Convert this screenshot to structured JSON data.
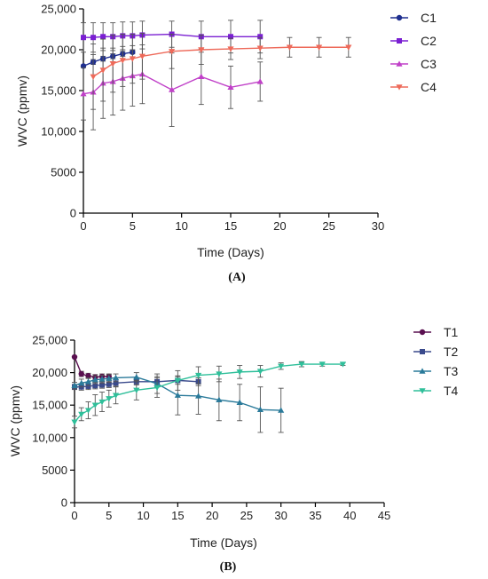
{
  "chart_data": [
    {
      "type": "line",
      "panel_label": "(A)",
      "xlabel": "Time (Days)",
      "ylabel": "WVC (ppmv)",
      "xlim": [
        0,
        30
      ],
      "ylim": [
        0,
        25000
      ],
      "x_ticks": [
        "0",
        "5",
        "10",
        "15",
        "20",
        "25",
        "30"
      ],
      "y_ticks": [
        "0",
        "5000",
        "10,000",
        "15,000",
        "20,000",
        "25,000"
      ],
      "legend_position": "top-right",
      "series": [
        {
          "name": "C1",
          "color": "#1f2f8f",
          "marker": "circle",
          "x": [
            0,
            1,
            2,
            3,
            4,
            5
          ],
          "y": [
            18000,
            18500,
            18900,
            19200,
            19500,
            19700
          ],
          "err": [
            0,
            300,
            300,
            300,
            300,
            200
          ]
        },
        {
          "name": "C2",
          "color": "#7a1fd2",
          "marker": "square",
          "x": [
            0,
            1,
            2,
            3,
            4,
            5,
            6,
            9,
            12,
            15,
            18
          ],
          "y": [
            21500,
            21500,
            21600,
            21600,
            21700,
            21700,
            21800,
            21900,
            21600,
            21600,
            21600
          ],
          "err": [
            1800,
            1800,
            1700,
            1700,
            1700,
            1700,
            1700,
            1600,
            1900,
            2000,
            2000
          ]
        },
        {
          "name": "C3",
          "color": "#c040c8",
          "marker": "triangle-up",
          "x": [
            0,
            1,
            2,
            3,
            4,
            5,
            6,
            9,
            12,
            15,
            18
          ],
          "y": [
            14600,
            14800,
            15900,
            16100,
            16500,
            16800,
            17000,
            15100,
            16700,
            15400,
            16100
          ],
          "err": [
            3200,
            4600,
            4300,
            4100,
            3900,
            3700,
            3600,
            4500,
            3400,
            2600,
            2400
          ]
        },
        {
          "name": "C4",
          "color": "#ee6a5a",
          "marker": "triangle-down",
          "x": [
            1,
            2,
            3,
            4,
            5,
            6,
            9,
            12,
            15,
            18,
            21,
            24,
            27
          ],
          "y": [
            16700,
            17500,
            18300,
            18700,
            18900,
            19200,
            19800,
            20000,
            20100,
            20200,
            20300,
            20300,
            20300
          ],
          "err": [
            4000,
            3800,
            3500,
            3200,
            3000,
            2800,
            2100,
            1800,
            1300,
            1300,
            1200,
            1200,
            1200
          ]
        }
      ]
    },
    {
      "type": "line",
      "panel_label": "(B)",
      "xlabel": "Time (Days)",
      "ylabel": "WVC (ppmv)",
      "xlim": [
        0,
        45
      ],
      "ylim": [
        0,
        25000
      ],
      "x_ticks": [
        "0",
        "5",
        "10",
        "15",
        "20",
        "25",
        "30",
        "35",
        "40",
        "45"
      ],
      "y_ticks": [
        "0",
        "5000",
        "10,000",
        "15,000",
        "20,000",
        "25,000"
      ],
      "legend_position": "top-right",
      "series": [
        {
          "name": "T1",
          "color": "#5a1050",
          "marker": "circle",
          "x": [
            0,
            1,
            2,
            3,
            4,
            5
          ],
          "y": [
            22400,
            19800,
            19500,
            19300,
            19400,
            19400
          ],
          "err": [
            0,
            400,
            400,
            400,
            400,
            400
          ]
        },
        {
          "name": "T2",
          "color": "#3a4a8c",
          "marker": "square",
          "x": [
            0,
            1,
            2,
            3,
            4,
            5,
            6,
            9,
            12,
            15,
            18
          ],
          "y": [
            17800,
            17800,
            17900,
            18000,
            18100,
            18200,
            18400,
            18600,
            18600,
            18800,
            18600
          ],
          "err": [
            400,
            500,
            500,
            500,
            500,
            500,
            500,
            500,
            800,
            600,
            600
          ]
        },
        {
          "name": "T3",
          "color": "#2a7a9a",
          "marker": "triangle-up",
          "x": [
            0,
            1,
            2,
            3,
            4,
            5,
            6,
            9,
            12,
            15,
            18,
            21,
            24,
            27,
            30
          ],
          "y": [
            18000,
            18400,
            18600,
            18900,
            19000,
            19100,
            19200,
            19300,
            18300,
            16500,
            16400,
            15800,
            15400,
            14300,
            14200
          ],
          "err": [
            500,
            600,
            600,
            600,
            600,
            600,
            600,
            700,
            1500,
            3000,
            2800,
            3200,
            2800,
            3500,
            3400
          ]
        },
        {
          "name": "T4",
          "color": "#2fbf9a",
          "marker": "triangle-down",
          "x": [
            0,
            1,
            2,
            3,
            4,
            5,
            6,
            9,
            12,
            15,
            18,
            21,
            24,
            27,
            30,
            33,
            36,
            39
          ],
          "y": [
            12400,
            13600,
            14200,
            15000,
            15500,
            16000,
            16500,
            17300,
            17700,
            18800,
            19600,
            19800,
            20100,
            20200,
            21000,
            21300,
            21300,
            21300
          ],
          "err": [
            900,
            1000,
            1300,
            1600,
            1500,
            1300,
            1300,
            1500,
            1500,
            1500,
            1300,
            1200,
            1000,
            900,
            500,
            400,
            300,
            200
          ]
        }
      ]
    }
  ]
}
